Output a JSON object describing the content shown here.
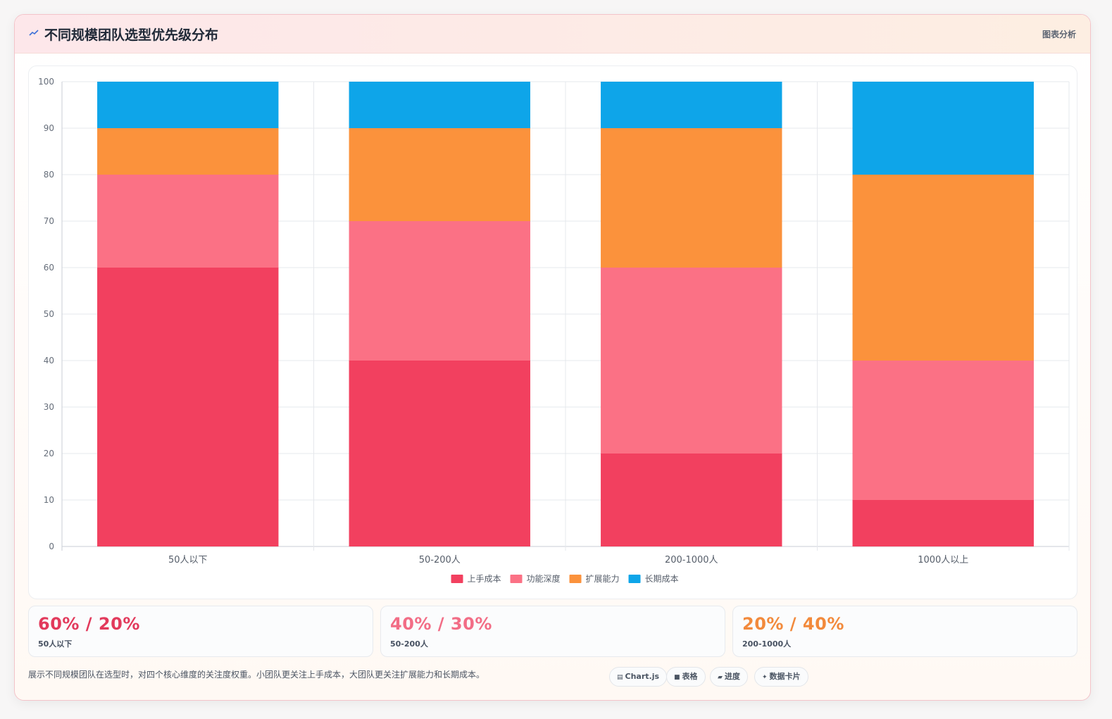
{
  "header": {
    "title": "不同规模团队选型优先级分布",
    "tag": "图表分析"
  },
  "chart_data": {
    "type": "bar",
    "stacked": true,
    "categories": [
      "50人以下",
      "50-200人",
      "200-1000人",
      "1000人以上"
    ],
    "series": [
      {
        "name": "上手成本",
        "color": "#f2405f",
        "values": [
          60,
          40,
          20,
          10
        ]
      },
      {
        "name": "功能深度",
        "color": "#fb7185",
        "values": [
          20,
          30,
          40,
          30
        ]
      },
      {
        "name": "扩展能力",
        "color": "#fb923c",
        "values": [
          10,
          20,
          30,
          40
        ]
      },
      {
        "name": "长期成本",
        "color": "#0ea5e9",
        "values": [
          10,
          10,
          10,
          20
        ]
      }
    ],
    "ylim": [
      0,
      100
    ],
    "yticks": [
      0,
      10,
      20,
      30,
      40,
      50,
      60,
      70,
      80,
      90,
      100
    ],
    "grid": true,
    "legend_position": "bottom"
  },
  "stats": [
    {
      "value": "60% / 20%",
      "label": "50人以下",
      "color": "#e23a5c"
    },
    {
      "value": "40% / 30%",
      "label": "50-200人",
      "color": "#f26d86"
    },
    {
      "value": "20% / 40%",
      "label": "200-1000人",
      "color": "#f28a3c"
    }
  ],
  "footer": {
    "description": "展示不同规模团队在选型时，对四个核心维度的关注度权重。小团队更关注上手成本，大团队更关注扩展能力和长期成本。",
    "chips": [
      "Chart.js",
      "表格",
      "进度",
      "数据卡片"
    ]
  }
}
